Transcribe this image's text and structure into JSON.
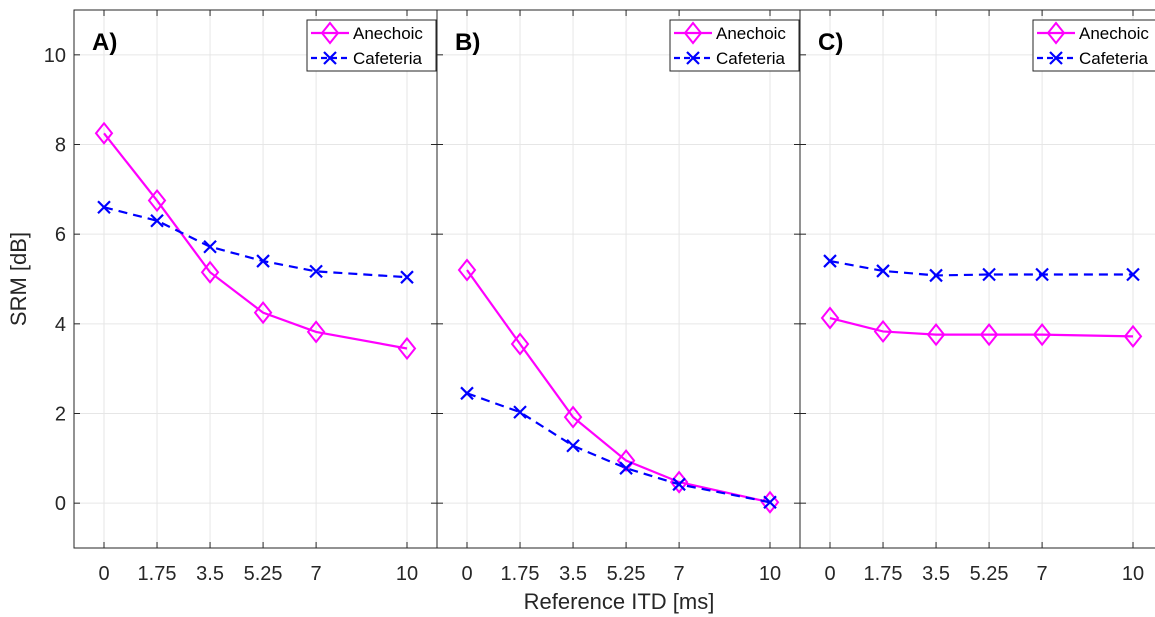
{
  "figure": {
    "xlabel": "Reference ITD [ms]",
    "ylabel": "SRM [dB]"
  },
  "chart_data": [
    {
      "type": "line",
      "panel_label": "A)",
      "x": [
        0,
        1.75,
        3.5,
        5.25,
        7,
        10
      ],
      "xticklabels": [
        "0",
        "1.75",
        "3.5",
        "5.25",
        "7",
        "10"
      ],
      "ylim": [
        -1,
        11
      ],
      "yticks": [
        0,
        2,
        4,
        6,
        8,
        10
      ],
      "grid": true,
      "legend_position": "top-right",
      "series": [
        {
          "name": "Anechoic",
          "values": [
            8.25,
            6.75,
            5.15,
            4.25,
            3.82,
            3.45
          ],
          "color": "#ff00ff",
          "marker": "diamond",
          "line": "solid"
        },
        {
          "name": "Cafeteria",
          "values": [
            6.6,
            6.3,
            5.72,
            5.4,
            5.17,
            5.04
          ],
          "color": "#0000ff",
          "marker": "x",
          "line": "dashed"
        }
      ]
    },
    {
      "type": "line",
      "panel_label": "B)",
      "x": [
        0,
        1.75,
        3.5,
        5.25,
        7,
        10
      ],
      "xticklabels": [
        "0",
        "1.75",
        "3.5",
        "5.25",
        "7",
        "10"
      ],
      "ylim": [
        -1,
        11
      ],
      "grid": true,
      "legend_position": "top-right",
      "series": [
        {
          "name": "Anechoic",
          "values": [
            5.2,
            3.55,
            1.92,
            0.95,
            0.47,
            0.02
          ],
          "color": "#ff00ff",
          "marker": "diamond",
          "line": "solid"
        },
        {
          "name": "Cafeteria",
          "values": [
            2.45,
            2.03,
            1.28,
            0.78,
            0.42,
            0.02
          ],
          "color": "#0000ff",
          "marker": "x",
          "line": "dashed"
        }
      ]
    },
    {
      "type": "line",
      "panel_label": "C)",
      "x": [
        0,
        1.75,
        3.5,
        5.25,
        7,
        10
      ],
      "xticklabels": [
        "0",
        "1.75",
        "3.5",
        "5.25",
        "7",
        "10"
      ],
      "ylim": [
        -1,
        11
      ],
      "grid": true,
      "legend_position": "top-right",
      "series": [
        {
          "name": "Anechoic",
          "values": [
            4.13,
            3.83,
            3.76,
            3.76,
            3.76,
            3.72
          ],
          "color": "#ff00ff",
          "marker": "diamond",
          "line": "solid"
        },
        {
          "name": "Cafeteria",
          "values": [
            5.4,
            5.18,
            5.08,
            5.1,
            5.1,
            5.1
          ],
          "color": "#0000ff",
          "marker": "x",
          "line": "dashed"
        }
      ]
    }
  ]
}
